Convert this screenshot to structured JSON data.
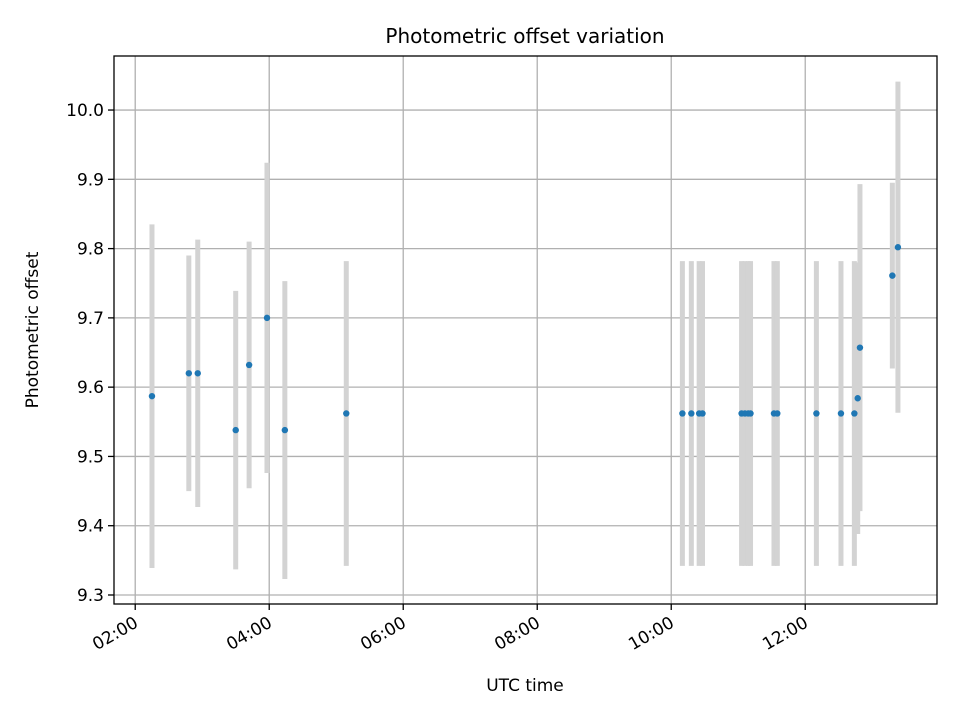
{
  "chart_data": {
    "type": "scatter",
    "title": "Photometric offset variation",
    "xlabel": "UTC time",
    "ylabel": "Photometric offset",
    "x_tick_labels": [
      "02:00",
      "04:00",
      "06:00",
      "08:00",
      "10:00",
      "12:00"
    ],
    "y_tick_labels": [
      "9.3",
      "9.4",
      "9.5",
      "9.6",
      "9.7",
      "9.8",
      "9.9",
      "10.0"
    ],
    "xlim": [
      "01:41",
      "13:58"
    ],
    "ylim": [
      9.287,
      10.078
    ],
    "grid": true,
    "colors": {
      "point": "#1f77b4",
      "errorbar": "#d3d3d3",
      "grid": "#b0b0b0"
    },
    "points": [
      {
        "time": "02:15",
        "y": 9.587,
        "yerr": 0.248
      },
      {
        "time": "02:48",
        "y": 9.62,
        "yerr": 0.17
      },
      {
        "time": "02:56",
        "y": 9.62,
        "yerr": 0.193
      },
      {
        "time": "03:30",
        "y": 9.538,
        "yerr": 0.201
      },
      {
        "time": "03:42",
        "y": 9.632,
        "yerr": 0.178
      },
      {
        "time": "03:58",
        "y": 9.7,
        "yerr": 0.224
      },
      {
        "time": "04:14",
        "y": 9.538,
        "yerr": 0.215
      },
      {
        "time": "05:09",
        "y": 9.562,
        "yerr": 0.22
      },
      {
        "time": "10:10",
        "y": 9.562,
        "yerr": 0.22
      },
      {
        "time": "10:18",
        "y": 9.562,
        "yerr": 0.22
      },
      {
        "time": "10:25",
        "y": 9.562,
        "yerr": 0.22
      },
      {
        "time": "10:28",
        "y": 9.562,
        "yerr": 0.22
      },
      {
        "time": "11:03",
        "y": 9.562,
        "yerr": 0.22
      },
      {
        "time": "11:06",
        "y": 9.562,
        "yerr": 0.22
      },
      {
        "time": "11:09",
        "y": 9.562,
        "yerr": 0.22
      },
      {
        "time": "11:11",
        "y": 9.562,
        "yerr": 0.22
      },
      {
        "time": "11:32",
        "y": 9.562,
        "yerr": 0.22
      },
      {
        "time": "11:35",
        "y": 9.562,
        "yerr": 0.22
      },
      {
        "time": "12:10",
        "y": 9.562,
        "yerr": 0.22
      },
      {
        "time": "12:32",
        "y": 9.562,
        "yerr": 0.22
      },
      {
        "time": "12:44",
        "y": 9.562,
        "yerr": 0.22
      },
      {
        "time": "12:47",
        "y": 9.584,
        "yerr": 0.196
      },
      {
        "time": "12:49",
        "y": 9.657,
        "yerr": 0.236
      },
      {
        "time": "13:18",
        "y": 9.761,
        "yerr": 0.134
      },
      {
        "time": "13:23",
        "y": 9.802,
        "yerr": 0.239
      }
    ]
  }
}
